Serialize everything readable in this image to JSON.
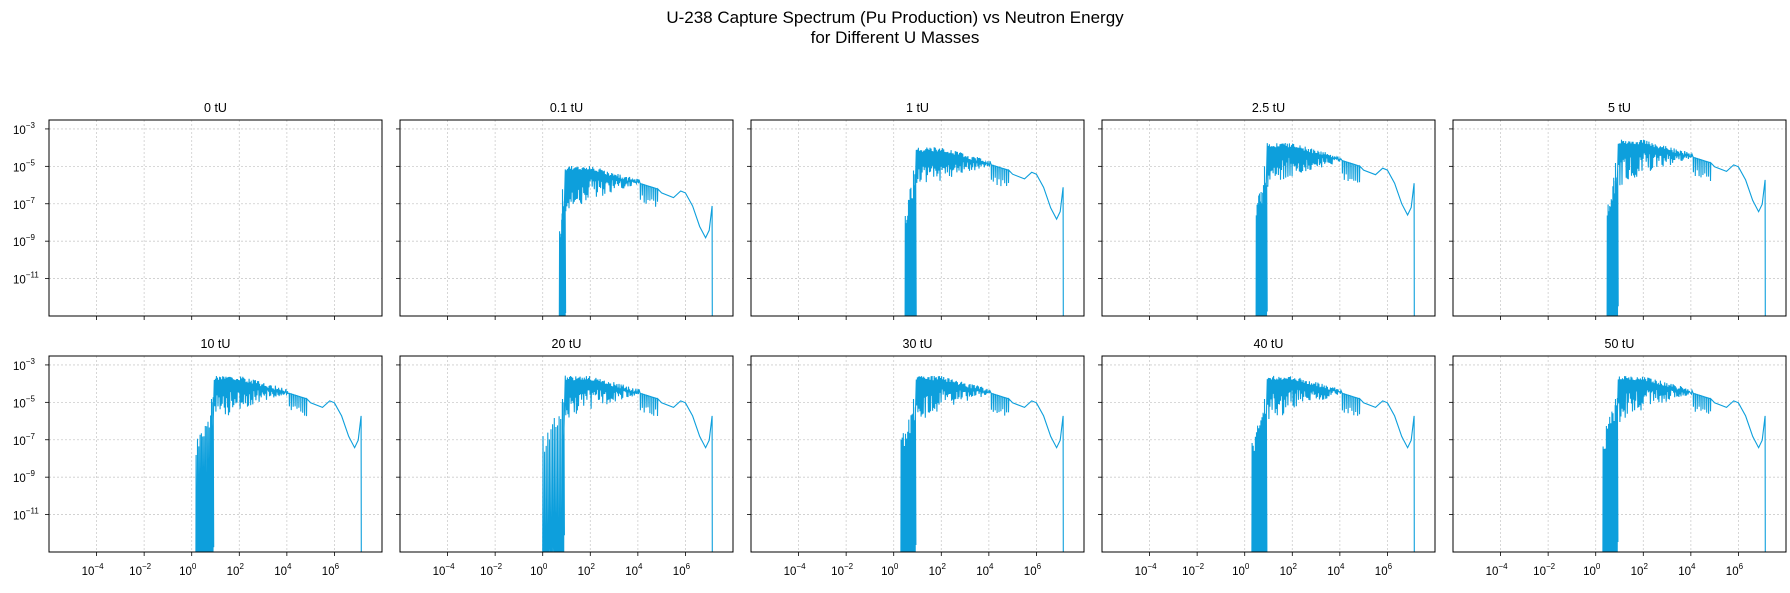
{
  "figure": {
    "title_line1": "U-238 Capture Spectrum (Pu Production) vs Neutron Energy",
    "title_line2": "for Different U Masses",
    "line_color": "#0d9fdc",
    "grid_color": "#cccccc"
  },
  "chart_data": {
    "type": "line",
    "x_scale": "log",
    "y_scale": "log",
    "xlim": [
      1e-06,
      100000000.0
    ],
    "ylim": [
      1e-13,
      0.003
    ],
    "x_ticks": [
      {
        "base": "10",
        "exp": "−4"
      },
      {
        "base": "10",
        "exp": "−2"
      },
      {
        "base": "10",
        "exp": "0"
      },
      {
        "base": "10",
        "exp": "2"
      },
      {
        "base": "10",
        "exp": "4"
      },
      {
        "base": "10",
        "exp": "6"
      }
    ],
    "x_tick_values": [
      0.0001,
      0.01,
      1,
      100.0,
      10000.0,
      1000000.0
    ],
    "y_ticks": [
      {
        "base": "10",
        "exp": "−3"
      },
      {
        "base": "10",
        "exp": "−5"
      },
      {
        "base": "10",
        "exp": "−7"
      },
      {
        "base": "10",
        "exp": "−9"
      },
      {
        "base": "10",
        "exp": "−11"
      }
    ],
    "y_tick_values": [
      0.001,
      1e-05,
      1e-07,
      1e-09,
      1e-11
    ],
    "grid": true,
    "panels": [
      {
        "title": "0 tU",
        "peak": null,
        "cutoff": null
      },
      {
        "title": "0.1 tU",
        "peak": 1.2e-05,
        "cutoff": 5
      },
      {
        "title": "1 tU",
        "peak": 0.00012,
        "cutoff": 3
      },
      {
        "title": "2.5 tU",
        "peak": 0.0002,
        "cutoff": 3
      },
      {
        "title": "5 tU",
        "peak": 0.0003,
        "cutoff": 3
      },
      {
        "title": "10 tU",
        "peak": 0.0003,
        "cutoff": 1.5
      },
      {
        "title": "20 tU",
        "peak": 0.0003,
        "cutoff": 1
      },
      {
        "title": "30 tU",
        "peak": 0.0003,
        "cutoff": 2
      },
      {
        "title": "40 tU",
        "peak": 0.0003,
        "cutoff": 2
      },
      {
        "title": "50 tU",
        "peak": 0.0003,
        "cutoff": 2
      }
    ]
  }
}
